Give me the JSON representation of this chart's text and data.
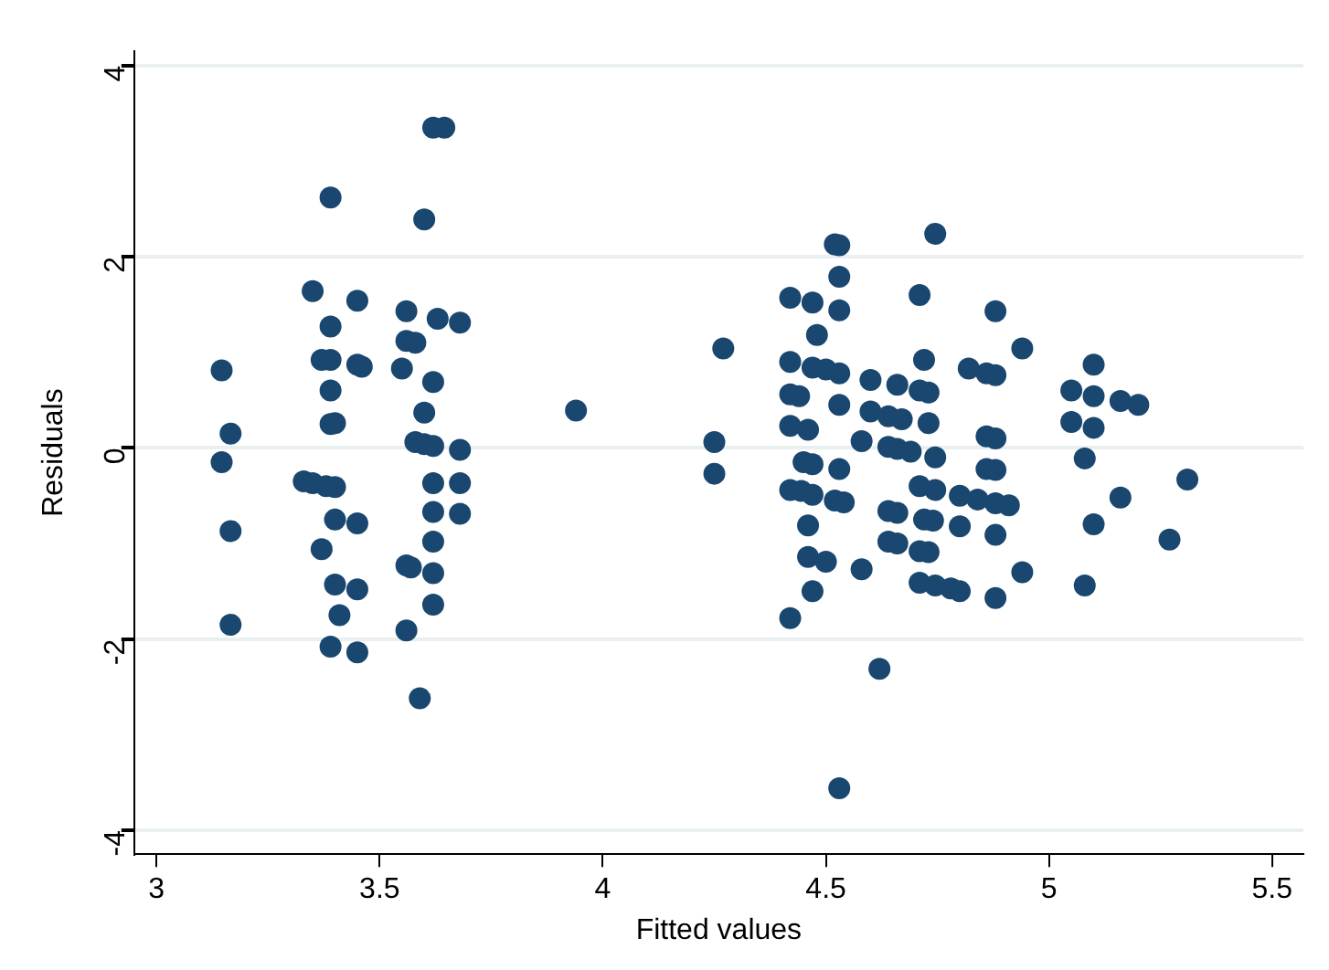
{
  "chart_data": {
    "type": "scatter",
    "xlabel": "Fitted values",
    "ylabel": "Residuals",
    "xlim": [
      2.95,
      5.57
    ],
    "ylim": [
      -4.25,
      4.15
    ],
    "xticks": [
      3,
      3.5,
      4,
      4.5,
      5,
      5.5
    ],
    "yticks": [
      -4,
      -2,
      0,
      2,
      4
    ],
    "grid": "y",
    "legend": false,
    "marker": "circle",
    "series": [
      {
        "color": "#1a476f",
        "x": [
          3.146,
          3.166,
          3.146,
          3.166,
          3.166,
          3.35,
          3.39,
          3.39,
          3.45,
          3.37,
          3.39,
          3.39,
          3.45,
          3.46,
          3.39,
          3.4,
          3.33,
          3.35,
          3.38,
          3.4,
          3.37,
          3.4,
          3.45,
          3.4,
          3.41,
          3.45,
          3.39,
          3.45,
          3.62,
          3.645,
          3.6,
          3.56,
          3.63,
          3.68,
          3.56,
          3.58,
          3.55,
          3.62,
          3.6,
          3.58,
          3.6,
          3.62,
          3.68,
          3.62,
          3.68,
          3.62,
          3.68,
          3.62,
          3.56,
          3.57,
          3.62,
          3.56,
          3.62,
          3.59,
          3.94,
          4.27,
          4.25,
          4.25,
          4.52,
          4.53,
          4.53,
          4.42,
          4.47,
          4.53,
          4.48,
          4.42,
          4.47,
          4.5,
          4.53,
          4.6,
          4.66,
          4.42,
          4.44,
          4.53,
          4.6,
          4.64,
          4.67,
          4.42,
          4.46,
          4.58,
          4.64,
          4.66,
          4.69,
          4.45,
          4.47,
          4.53,
          4.42,
          4.445,
          4.47,
          4.52,
          4.54,
          4.64,
          4.66,
          4.46,
          4.64,
          4.66,
          4.46,
          4.5,
          4.58,
          4.47,
          4.42,
          4.62,
          4.53,
          4.745,
          4.71,
          4.88,
          4.94,
          4.72,
          4.82,
          4.86,
          4.88,
          4.71,
          4.73,
          5.1,
          5.05,
          5.1,
          5.16,
          5.2,
          5.05,
          5.1,
          4.73,
          4.745,
          4.86,
          4.88,
          5.08,
          4.86,
          4.88,
          5.31,
          4.71,
          4.745,
          4.8,
          4.84,
          4.88,
          4.91,
          5.16,
          4.72,
          4.74,
          4.8,
          4.88,
          5.1,
          5.27,
          4.71,
          4.73,
          4.71,
          4.745,
          4.78,
          4.8,
          4.94,
          5.08,
          4.88
        ],
        "values": [
          0.81,
          0.15,
          -0.15,
          -0.87,
          -1.85,
          1.64,
          2.62,
          1.27,
          1.54,
          0.92,
          0.92,
          0.6,
          0.87,
          0.85,
          0.25,
          -0.75,
          -0.35,
          -0.37,
          -0.4,
          -0.41,
          -1.06,
          0.26,
          -0.79,
          -1.43,
          -1.75,
          -1.48,
          -2.08,
          -2.14,
          3.35,
          3.35,
          2.39,
          1.43,
          1.35,
          1.31,
          1.12,
          1.1,
          0.83,
          0.69,
          0.37,
          0.06,
          0.04,
          0.02,
          -0.02,
          -0.37,
          -0.37,
          -0.67,
          -0.69,
          -0.98,
          -1.23,
          -1.25,
          -1.31,
          -1.91,
          -1.64,
          -2.62,
          0.39,
          1.04,
          0.06,
          -0.27,
          2.13,
          2.12,
          1.79,
          1.57,
          1.52,
          1.44,
          1.18,
          0.9,
          0.84,
          0.82,
          0.78,
          0.71,
          0.66,
          0.56,
          0.54,
          0.45,
          0.38,
          0.33,
          0.3,
          0.23,
          0.19,
          0.07,
          0.01,
          -0.01,
          -0.04,
          -0.15,
          -0.17,
          -0.22,
          -0.44,
          -0.45,
          -0.49,
          -0.55,
          -0.57,
          -0.66,
          -0.68,
          -0.81,
          -0.98,
          -1.0,
          -1.14,
          -1.19,
          -1.27,
          -1.5,
          -1.78,
          -2.31,
          -3.56,
          2.24,
          1.6,
          1.43,
          1.04,
          0.92,
          0.83,
          0.78,
          0.76,
          0.6,
          0.58,
          0.87,
          0.6,
          0.54,
          0.49,
          0.45,
          0.27,
          0.21,
          0.26,
          -0.1,
          0.12,
          0.1,
          -0.11,
          -0.22,
          -0.23,
          -0.33,
          -0.4,
          -0.44,
          -0.5,
          -0.54,
          -0.58,
          -0.6,
          -0.52,
          -0.75,
          -0.76,
          -0.82,
          -0.91,
          -0.8,
          -0.96,
          -1.08,
          -1.09,
          -1.41,
          -1.44,
          -1.47,
          -1.5,
          -1.3,
          -1.44,
          -1.57
        ]
      }
    ]
  }
}
